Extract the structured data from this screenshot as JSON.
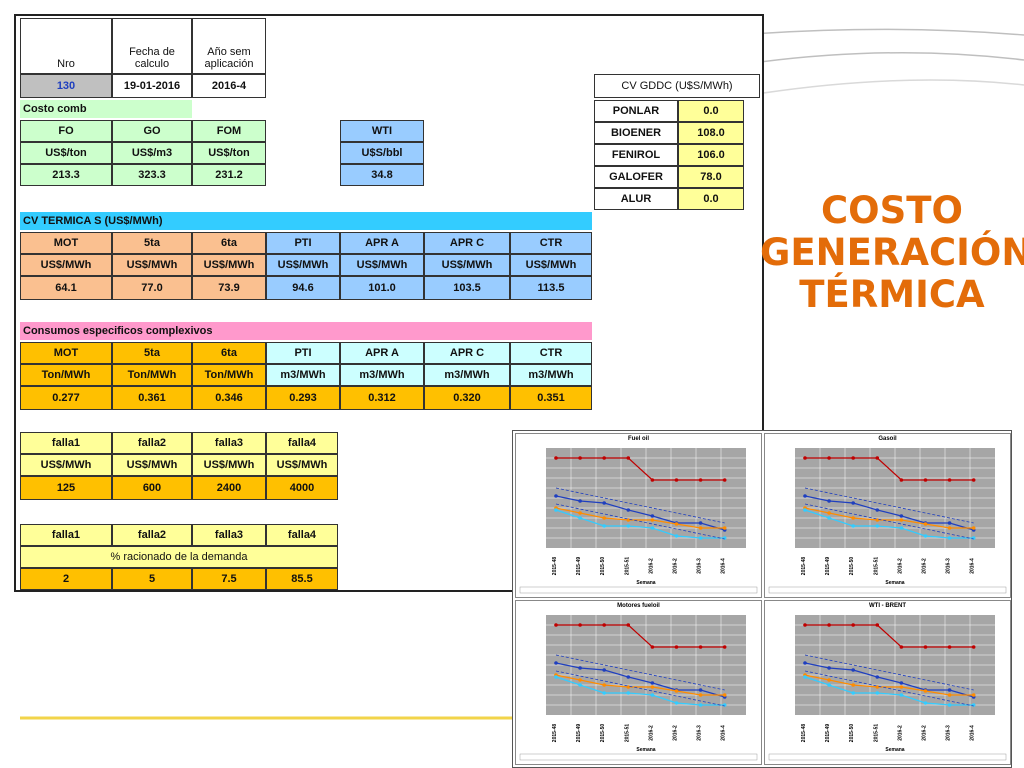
{
  "header": {
    "nro_label": "Nro",
    "fecha_label": "Fecha de calculo",
    "anio_label": "Año sem aplicación",
    "nro": "130",
    "fecha": "19-01-2016",
    "anio": "2016-4"
  },
  "costo_comb": {
    "section_label": "Costo comb",
    "fuels": [
      {
        "name": "FO",
        "unit": "US$/ton",
        "value": "213.3"
      },
      {
        "name": "GO",
        "unit": "US$/m3",
        "value": "323.3"
      },
      {
        "name": "FOM",
        "unit": "US$/ton",
        "value": "231.2"
      }
    ],
    "wti": {
      "name": "WTI",
      "unit": "U$S/bbl",
      "value": "34.8"
    }
  },
  "cv_gddc": {
    "title": "CV GDDC (U$S/MWh)",
    "rows": [
      {
        "name": "PONLAR",
        "value": "0.0"
      },
      {
        "name": "BIOENER",
        "value": "108.0"
      },
      {
        "name": "FENIROL",
        "value": "106.0"
      },
      {
        "name": "GALOFER",
        "value": "78.0"
      },
      {
        "name": "ALUR",
        "value": "0.0"
      }
    ]
  },
  "cv_termicas": {
    "section_label": "CV TERMICA S (US$/MWh)",
    "columns": [
      "MOT",
      "5ta",
      "6ta",
      "PTI",
      "APR A",
      "APR C",
      "CTR"
    ],
    "units": [
      "US$/MWh",
      "US$/MWh",
      "US$/MWh",
      "US$/MWh",
      "US$/MWh",
      "US$/MWh",
      "US$/MWh"
    ],
    "values": [
      "64.1",
      "77.0",
      "73.9",
      "94.6",
      "101.0",
      "103.5",
      "113.5"
    ]
  },
  "consumos": {
    "section_label": "Consumos especificos complexivos",
    "columns": [
      "MOT",
      "5ta",
      "6ta",
      "PTI",
      "APR A",
      "APR C",
      "CTR"
    ],
    "units": [
      "Ton/MWh",
      "Ton/MWh",
      "Ton/MWh",
      "m3/MWh",
      "m3/MWh",
      "m3/MWh",
      "m3/MWh"
    ],
    "values": [
      "0.277",
      "0.361",
      "0.346",
      "0.293",
      "0.312",
      "0.320",
      "0.351"
    ]
  },
  "falla_costos": {
    "columns": [
      "falla1",
      "falla2",
      "falla3",
      "falla4"
    ],
    "units": [
      "US$/MWh",
      "US$/MWh",
      "US$/MWh",
      "US$/MWh"
    ],
    "values": [
      "125",
      "600",
      "2400",
      "4000"
    ]
  },
  "falla_racionado": {
    "columns": [
      "falla1",
      "falla2",
      "falla3",
      "falla4"
    ],
    "label": "% racionado de la demanda",
    "values": [
      "2",
      "5",
      "7.5",
      "85.5"
    ]
  },
  "title": {
    "line1": "COSTO",
    "line2": "GENERACIÓN",
    "line3": "TÉRMICA"
  },
  "charts": {
    "titles": [
      "Fuel oil",
      "Gasoil",
      "Motores fueloil",
      "WTI - BRENT"
    ],
    "x_label": "Semana",
    "x_ticks": [
      "2015-48",
      "2015-49",
      "2015-50",
      "2015-51",
      "2016-2",
      "2016-2",
      "2016-3",
      "2016-4"
    ]
  },
  "colors": {
    "orange_title": "#e36c09",
    "green": "#ccffcc",
    "blue": "#99ccff",
    "gold": "#ffc000"
  }
}
